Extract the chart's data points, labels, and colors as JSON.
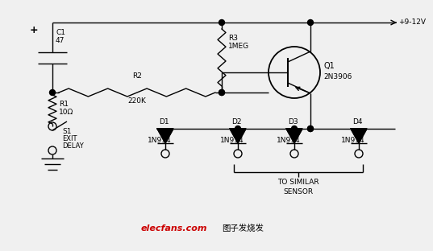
{
  "bg_color": "#f0f0f0",
  "line_color": "#000000",
  "watermark_text": "elecfans.com",
  "watermark_color": "#cc0000",
  "watermark2": "图子发烧发",
  "supply_label": "+9-12V",
  "C1_label": "C1",
  "C1_val": "47",
  "R1_label": "R1",
  "R1_val": "10Ω",
  "R2_label": "R2",
  "R2_val": "220K",
  "R3_label": "R3",
  "R3_val": "1MEG",
  "Q1_label": "Q1",
  "Q1_val": "2N3906",
  "S1_label": "S1",
  "S1_val1": "EXIT",
  "S1_val2": "DELAY",
  "D1_label": "D1",
  "D2_label": "D2",
  "D3_label": "D3",
  "D4_label": "D4",
  "D_val": "1N914",
  "sensor_label1": "TO SIMILAR",
  "sensor_label2": "SENSOR"
}
